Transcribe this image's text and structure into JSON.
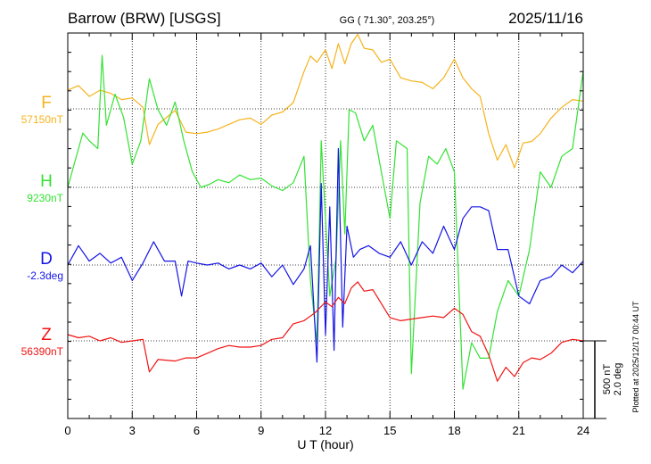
{
  "chart_data": {
    "type": "line",
    "title_left": "Barrow (BRW)  [USGS]",
    "title_center": "GG ( 71.30°, 203.25°)",
    "title_right": "2025/11/16",
    "xlabel": "U T (hour)",
    "xlim": [
      0,
      24
    ],
    "x_ticks": [
      "0",
      "3",
      "6",
      "9",
      "12",
      "15",
      "18",
      "21",
      "24"
    ],
    "scale_label_1": "500 nT",
    "scale_label_2": "2.0 deg",
    "plotted_note": "Plotted at 2025/12/17 00:44 UT",
    "grid": true,
    "series": [
      {
        "name": "F",
        "baseline_label": "57150nT",
        "color": "#f5b31c",
        "x": [
          0,
          0.5,
          1,
          1.5,
          2,
          2.5,
          3,
          3.5,
          3.8,
          4.2,
          5,
          5.5,
          6,
          6.5,
          7,
          7.5,
          8,
          8.5,
          9,
          9.5,
          10,
          10.5,
          11,
          11.3,
          11.6,
          12,
          12.3,
          12.6,
          12.9,
          13.2,
          13.5,
          13.8,
          14.2,
          14.6,
          15,
          15.5,
          16,
          16.5,
          17,
          17.5,
          18,
          18.4,
          18.8,
          19.2,
          19.6,
          20,
          20.4,
          20.8,
          21.2,
          21.6,
          22,
          22.5,
          23,
          23.5,
          24
        ],
        "values": [
          120,
          150,
          80,
          120,
          100,
          60,
          70,
          10,
          -230,
          -100,
          -10,
          -150,
          -160,
          -150,
          -130,
          -100,
          -70,
          -60,
          -100,
          -40,
          -20,
          40,
          240,
          340,
          300,
          380,
          260,
          420,
          290,
          420,
          480,
          390,
          380,
          300,
          320,
          200,
          180,
          170,
          130,
          200,
          320,
          200,
          130,
          80,
          -160,
          -330,
          -230,
          -380,
          -220,
          -210,
          -160,
          -60,
          10,
          60,
          50
        ]
      },
      {
        "name": "H",
        "baseline_label": "9230nT",
        "color": "#33e233",
        "x": [
          0,
          0.3,
          0.7,
          1,
          1.4,
          1.6,
          1.8,
          2.2,
          2.6,
          3,
          3.4,
          3.8,
          4.2,
          4.6,
          5,
          5.4,
          5.8,
          6.2,
          6.6,
          7,
          7.5,
          8,
          8.5,
          9,
          9.5,
          10,
          10.5,
          11,
          11.3,
          11.6,
          11.8,
          12,
          12.2,
          12.5,
          12.7,
          12.9,
          13.1,
          13.4,
          13.8,
          14.2,
          14.6,
          15,
          15.3,
          15.8,
          16,
          16.4,
          16.8,
          17.2,
          17.6,
          18,
          18.4,
          18.8,
          19.2,
          19.6,
          20,
          20.5,
          21,
          21.5,
          22,
          22.5,
          23,
          23.5,
          24
        ],
        "values": [
          0,
          150,
          350,
          300,
          250,
          850,
          400,
          600,
          450,
          150,
          300,
          700,
          500,
          400,
          550,
          300,
          100,
          0,
          20,
          50,
          30,
          80,
          50,
          60,
          10,
          -20,
          30,
          200,
          -600,
          -1000,
          300,
          -200,
          -700,
          -450,
          300,
          -300,
          500,
          480,
          300,
          400,
          100,
          -200,
          300,
          250,
          -1200,
          -100,
          200,
          150,
          250,
          100,
          -1300,
          -1000,
          -1100,
          -1100,
          -800,
          -600,
          -700,
          -400,
          100,
          0,
          200,
          250,
          750
        ]
      },
      {
        "name": "D",
        "baseline_label": "-2.3deg",
        "color": "#1414e6",
        "x": [
          0,
          0.5,
          1,
          1.5,
          2,
          2.5,
          3,
          3.5,
          4,
          4.5,
          5,
          5.3,
          5.6,
          6,
          6.5,
          7,
          7.5,
          8,
          8.5,
          9,
          9.5,
          10,
          10.5,
          11,
          11.3,
          11.6,
          11.8,
          12,
          12.2,
          12.4,
          12.6,
          12.8,
          13,
          13.3,
          13.6,
          14,
          14.5,
          15,
          15.5,
          16,
          16.5,
          17,
          17.5,
          18,
          18.4,
          18.8,
          19.2,
          19.6,
          20,
          20.5,
          21,
          21.5,
          22,
          22.5,
          23,
          23.5,
          24
        ],
        "values": [
          0,
          0.5,
          0.1,
          0.3,
          0.05,
          0.2,
          -0.4,
          0.05,
          0.6,
          0.1,
          0.1,
          -0.8,
          0.1,
          0.05,
          0,
          0.05,
          -0.1,
          0,
          -0.1,
          0.05,
          -0.3,
          0,
          -0.5,
          -0.1,
          0.5,
          -2.5,
          2.1,
          -1.8,
          1.5,
          -2.2,
          3.0,
          -1.6,
          1.0,
          0.2,
          0.4,
          0.5,
          0.3,
          0.2,
          0.6,
          0,
          0.6,
          0.3,
          1.0,
          0.4,
          1.2,
          1.5,
          1.5,
          1.4,
          0.4,
          0.4,
          -0.8,
          -1.0,
          -0.4,
          -0.3,
          0,
          -0.2,
          0.1
        ]
      },
      {
        "name": "Z",
        "baseline_label": "56390nT",
        "color": "#f01414",
        "x": [
          0,
          0.5,
          1,
          1.5,
          2,
          2.5,
          3,
          3.5,
          3.8,
          4.2,
          5,
          5.5,
          6,
          6.5,
          7,
          7.5,
          8,
          8.5,
          9,
          9.5,
          10,
          10.5,
          11,
          11.5,
          12,
          12.3,
          12.6,
          12.9,
          13.2,
          13.5,
          13.8,
          14.2,
          14.6,
          15,
          15.5,
          16,
          16.5,
          17,
          17.5,
          18,
          18.4,
          18.8,
          19.2,
          19.6,
          20,
          20.4,
          20.8,
          21.2,
          21.6,
          22,
          22.5,
          23,
          23.5,
          24
        ],
        "values": [
          40,
          20,
          30,
          0,
          20,
          -10,
          0,
          10,
          -200,
          -120,
          -130,
          -110,
          -110,
          -80,
          -50,
          -30,
          -40,
          -40,
          -30,
          10,
          20,
          110,
          130,
          180,
          250,
          220,
          280,
          240,
          340,
          380,
          320,
          330,
          240,
          150,
          130,
          140,
          150,
          160,
          150,
          210,
          170,
          60,
          30,
          -90,
          -260,
          -170,
          -230,
          -140,
          -110,
          -120,
          -80,
          -10,
          10,
          0
        ]
      }
    ]
  }
}
